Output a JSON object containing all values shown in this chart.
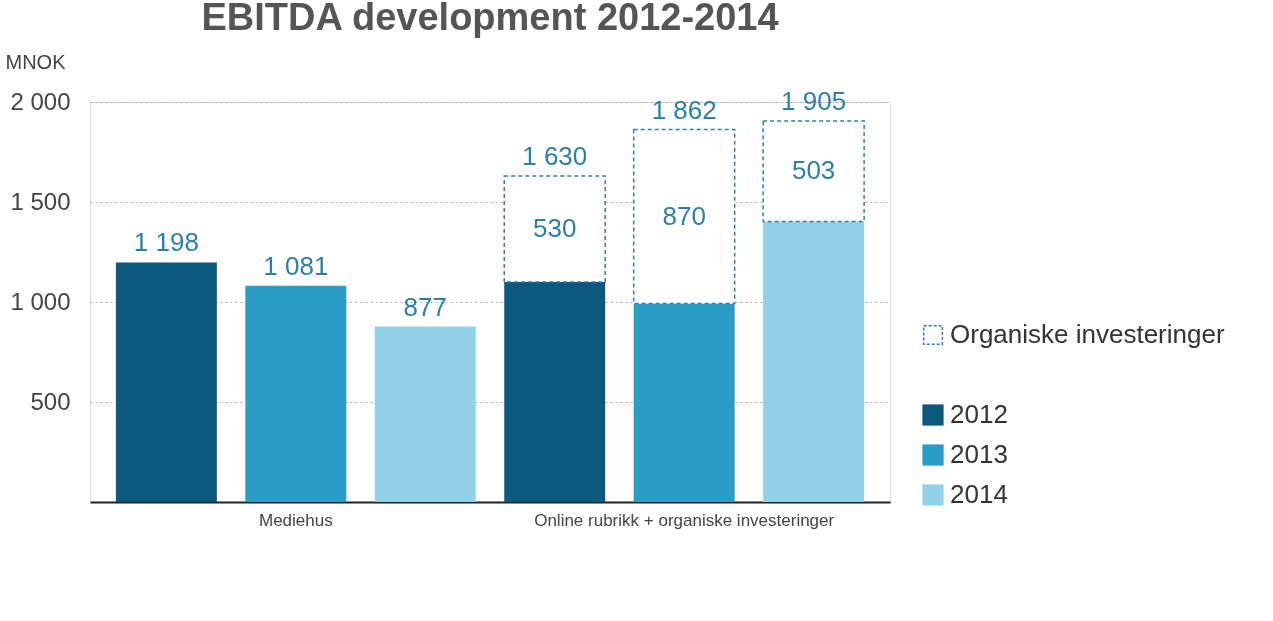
{
  "chart_data": {
    "type": "bar",
    "title": "EBITDA development 2012-2014",
    "ylabel": "MNOK",
    "categories": [
      null,
      "Mediehus",
      null,
      null,
      "Online rubrikk + organiske investeringer",
      null
    ],
    "stacked": true,
    "series": [
      {
        "name": "2012",
        "color": "#0b5a7e",
        "values": [
          1198,
          null,
          null,
          1100,
          null,
          null
        ],
        "value_labels": [
          "1 198",
          null,
          null,
          null,
          null,
          null
        ]
      },
      {
        "name": "2013",
        "color": "#2a9dc6",
        "values": [
          null,
          1081,
          null,
          null,
          992,
          null
        ],
        "value_labels": [
          null,
          "1 081",
          null,
          null,
          null,
          null
        ]
      },
      {
        "name": "2014",
        "color": "#92d2e8",
        "values": [
          null,
          null,
          877,
          null,
          null,
          1402
        ],
        "value_labels": [
          null,
          null,
          "877",
          null,
          null,
          null
        ]
      },
      {
        "name": "Organiske investeringer",
        "color": "#2e7fa8",
        "line_style": "dashed",
        "values": [
          null,
          null,
          null,
          530,
          870,
          503
        ],
        "value_labels": [
          null,
          null,
          null,
          "530",
          "870",
          "503"
        ]
      }
    ],
    "totals": [
      null,
      null,
      null,
      "1 630",
      "1 862",
      "1 905"
    ],
    "ylim": [
      0,
      2000
    ],
    "yticks": [
      {
        "value": 500,
        "label": "500"
      },
      {
        "value": 1000,
        "label": "1 000"
      },
      {
        "value": 1500,
        "label": "1 500"
      },
      {
        "value": 2000,
        "label": "2 000"
      }
    ],
    "grid": "y",
    "legend": "right"
  }
}
